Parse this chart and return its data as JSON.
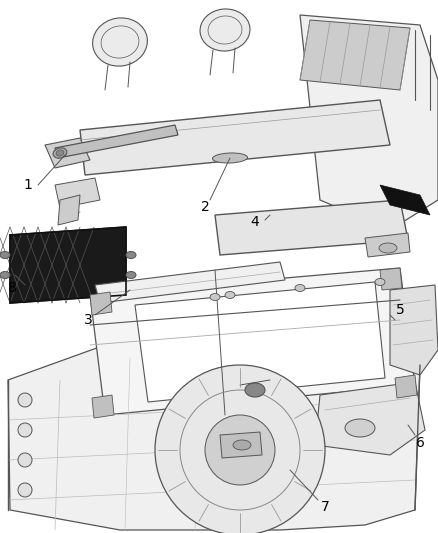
{
  "background_color": "#ffffff",
  "fig_width": 4.38,
  "fig_height": 5.33,
  "dpi": 100,
  "label_fontsize": 10,
  "label_color": "#000000",
  "line_color": "#444444",
  "light_gray": "#d8d8d8",
  "mid_gray": "#aaaaaa",
  "dark_gray": "#555555",
  "black": "#111111",
  "net_dark": "#2a2a2a",
  "net_grid": "#888888"
}
